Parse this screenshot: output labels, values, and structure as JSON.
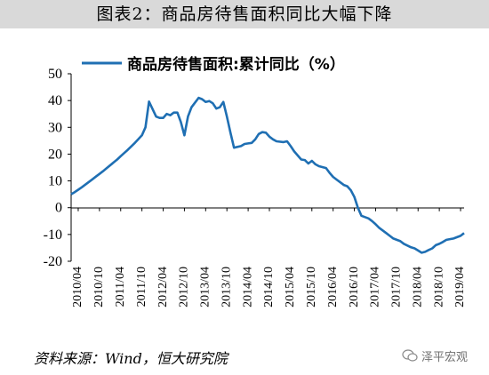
{
  "figure": {
    "title": "图表2：商品房待售面积同比大幅下降",
    "source": "资料来源：Wind，恒大研究院",
    "watermark": "泽平宏观"
  },
  "chart_data": {
    "type": "line",
    "ylim": [
      -20,
      50
    ],
    "yticks": [
      -20,
      -10,
      0,
      10,
      20,
      30,
      40,
      50
    ],
    "xticks": [
      "2010/04",
      "2010/10",
      "2011/04",
      "2011/10",
      "2012/04",
      "2012/10",
      "2013/04",
      "2013/10",
      "2014/04",
      "2014/10",
      "2015/04",
      "2015/10",
      "2016/04",
      "2016/10",
      "2017/04",
      "2017/10",
      "2018/04",
      "2018/10",
      "2019/04"
    ],
    "grid": false,
    "legend_position": "top",
    "series_color": "#1f6fb3",
    "series": [
      {
        "name": "商品房待售面积:累计同比（%）",
        "x": [
          "2010/02",
          "2010/03",
          "2010/04",
          "2010/05",
          "2010/06",
          "2010/07",
          "2010/08",
          "2010/09",
          "2010/10",
          "2010/11",
          "2010/12",
          "2011/02",
          "2011/03",
          "2011/04",
          "2011/05",
          "2011/06",
          "2011/07",
          "2011/08",
          "2011/09",
          "2011/10",
          "2011/11",
          "2011/12",
          "2012/02",
          "2012/03",
          "2012/04",
          "2012/05",
          "2012/06",
          "2012/07",
          "2012/08",
          "2012/09",
          "2012/10",
          "2012/11",
          "2012/12",
          "2013/02",
          "2013/03",
          "2013/04",
          "2013/05",
          "2013/06",
          "2013/07",
          "2013/08",
          "2013/09",
          "2013/10",
          "2013/11",
          "2013/12",
          "2014/02",
          "2014/03",
          "2014/04",
          "2014/05",
          "2014/06",
          "2014/07",
          "2014/08",
          "2014/09",
          "2014/10",
          "2014/11",
          "2014/12",
          "2015/02",
          "2015/03",
          "2015/04",
          "2015/05",
          "2015/06",
          "2015/07",
          "2015/08",
          "2015/09",
          "2015/10",
          "2015/11",
          "2015/12",
          "2016/02",
          "2016/03",
          "2016/04",
          "2016/05",
          "2016/06",
          "2016/07",
          "2016/08",
          "2016/09",
          "2016/10",
          "2016/11",
          "2016/12",
          "2017/02",
          "2017/03",
          "2017/04",
          "2017/05",
          "2017/06",
          "2017/07",
          "2017/08",
          "2017/09",
          "2017/10",
          "2017/11",
          "2017/12",
          "2018/02",
          "2018/03",
          "2018/04",
          "2018/05",
          "2018/06",
          "2018/07",
          "2018/08",
          "2018/09",
          "2018/10",
          "2018/11",
          "2018/12",
          "2019/02",
          "2019/03",
          "2019/04",
          "2019/05"
        ],
        "values": [
          5.0,
          5.8,
          6.7,
          7.6,
          8.6,
          9.6,
          10.6,
          11.6,
          12.6,
          13.6,
          14.7,
          16.9,
          18.0,
          19.2,
          20.4,
          21.6,
          22.9,
          24.2,
          25.6,
          27.0,
          30.0,
          39.6,
          34.0,
          33.5,
          33.5,
          35.0,
          34.5,
          35.5,
          35.5,
          32.0,
          27.0,
          34.0,
          37.5,
          41.0,
          40.5,
          39.5,
          39.8,
          39.0,
          37.0,
          37.5,
          39.5,
          34.0,
          28.0,
          22.4,
          23.0,
          23.8,
          24.0,
          24.2,
          25.5,
          27.5,
          28.2,
          28.0,
          26.5,
          25.5,
          24.8,
          24.5,
          24.8,
          23.0,
          21.0,
          19.5,
          18.0,
          17.8,
          16.5,
          17.5,
          16.2,
          15.5,
          14.8,
          13.0,
          11.5,
          10.5,
          9.5,
          8.5,
          8.0,
          6.5,
          4.0,
          0.0,
          -3.0,
          -4.0,
          -5.0,
          -6.2,
          -7.5,
          -8.5,
          -9.5,
          -10.5,
          -11.5,
          -12.0,
          -12.5,
          -13.5,
          -14.8,
          -15.2,
          -16.0,
          -16.8,
          -16.5,
          -15.8,
          -15.2,
          -14.0,
          -13.5,
          -12.8,
          -12.0,
          -11.5,
          -11.0,
          -10.5,
          -9.5
        ]
      }
    ]
  }
}
